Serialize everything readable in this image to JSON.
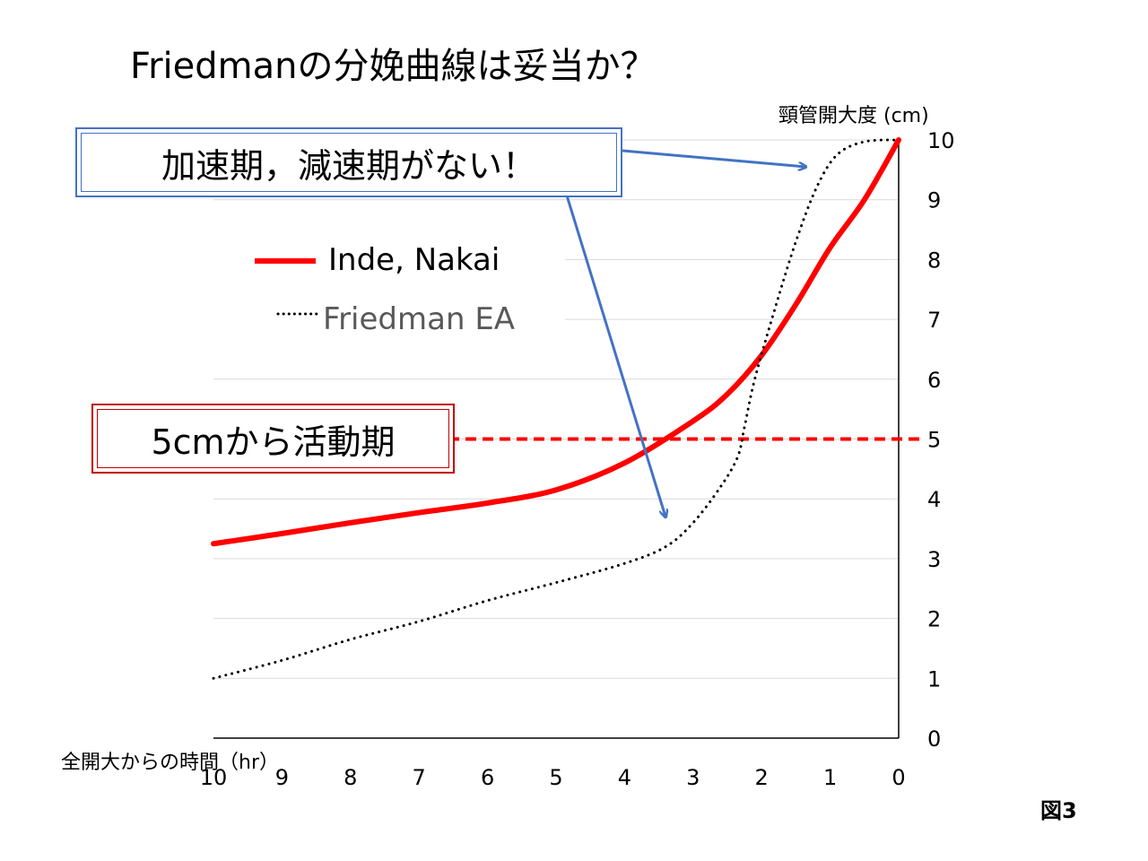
{
  "slide": {
    "title": "Friedmanの分娩曲線は妥当か？",
    "figure_label": "図3"
  },
  "callouts": {
    "no_phases": "加速期，減速期がない！",
    "active_phase": "5cmから活動期"
  },
  "colors": {
    "inde_nakai": "#FF0000",
    "friedman": "#000000",
    "arrow": "#4472C4",
    "threshold": "#FF0000",
    "grid": "#D9D9D9"
  },
  "chart_data": {
    "type": "line",
    "ylabel": "頸管開大度 (cm)",
    "xlabel": "全開大からの時間（hr）",
    "xlim": [
      10,
      0
    ],
    "ylim": [
      0,
      10
    ],
    "x_ticks": [
      "10",
      "9",
      "8",
      "7",
      "6",
      "5",
      "4",
      "3",
      "2",
      "1",
      "0"
    ],
    "y_ticks": [
      "0",
      "1",
      "2",
      "3",
      "4",
      "5",
      "6",
      "7",
      "8",
      "9",
      "10"
    ],
    "grid": true,
    "y_axis_side": "right",
    "legend_position": "upper-left",
    "threshold": {
      "y": 5,
      "style": "dashed",
      "color": "#FF0000"
    },
    "series": [
      {
        "name": "Inde,  Nakai",
        "style": "solid",
        "color": "#FF0000",
        "points": [
          [
            10,
            3.25
          ],
          [
            9,
            3.42
          ],
          [
            8,
            3.6
          ],
          [
            7,
            3.77
          ],
          [
            6,
            3.93
          ],
          [
            5,
            4.15
          ],
          [
            4,
            4.6
          ],
          [
            3,
            5.3
          ],
          [
            2.5,
            5.75
          ],
          [
            2,
            6.4
          ],
          [
            1.5,
            7.25
          ],
          [
            1,
            8.2
          ],
          [
            0.5,
            9.0
          ],
          [
            0,
            10.0
          ]
        ]
      },
      {
        "name": "Friedman EA",
        "style": "dotted",
        "color": "#000000",
        "points": [
          [
            10,
            1.0
          ],
          [
            9,
            1.3
          ],
          [
            8,
            1.65
          ],
          [
            7,
            1.95
          ],
          [
            6,
            2.3
          ],
          [
            5,
            2.6
          ],
          [
            4,
            2.92
          ],
          [
            3.4,
            3.2
          ],
          [
            3,
            3.6
          ],
          [
            2.6,
            4.2
          ],
          [
            2.35,
            4.7
          ],
          [
            2.25,
            5.2
          ],
          [
            2.1,
            6.0
          ],
          [
            1.8,
            7.2
          ],
          [
            1.5,
            8.3
          ],
          [
            1.2,
            9.2
          ],
          [
            0.9,
            9.75
          ],
          [
            0.5,
            9.97
          ],
          [
            0,
            10.0
          ]
        ]
      }
    ]
  }
}
